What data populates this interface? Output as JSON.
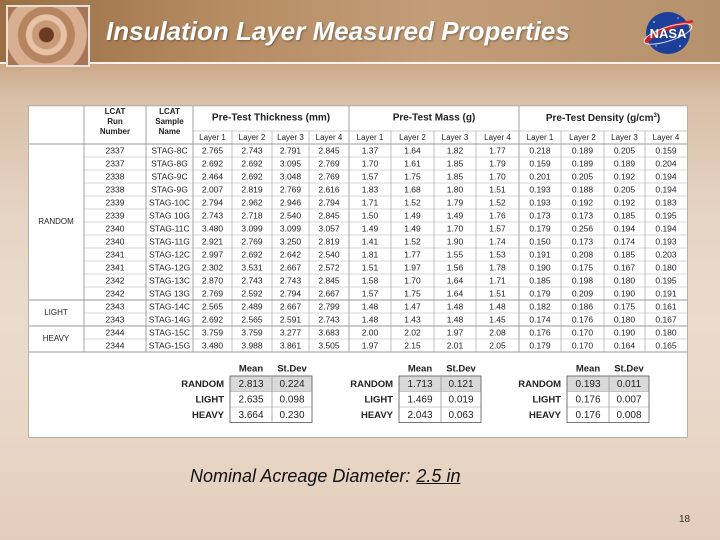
{
  "slide": {
    "title": "Insulation Layer Measured Properties",
    "logo_text": "NASA",
    "thumbnail_icon": "insulation-sample-photo",
    "footer_label": "Nominal Acreage Diameter:",
    "footer_value": "2.5 in",
    "page_number": "18"
  },
  "table": {
    "headers": {
      "run": [
        "LCAT",
        "Run",
        "Number"
      ],
      "sample": [
        "LCAT",
        "Sample",
        "Name"
      ],
      "thickness": "Pre-Test Thickness (mm)",
      "mass": "Pre-Test Mass (g)",
      "density_main": "Pre-Test Density (g/cm",
      "density_sup": "3",
      "density_close": ")",
      "layers": [
        "Layer 1",
        "Layer 2",
        "Layer 3",
        "Layer 4"
      ]
    },
    "groups": [
      {
        "label": "RANDOM",
        "start": 0,
        "count": 12
      },
      {
        "label": "LIGHT",
        "start": 12,
        "count": 2
      },
      {
        "label": "HEAVY",
        "start": 14,
        "count": 2
      }
    ],
    "rows": [
      {
        "run": "2337",
        "sample": "STAG-8C",
        "thickness": [
          "2.765",
          "2.743",
          "2.791",
          "2.845"
        ],
        "mass": [
          "1.37",
          "1.64",
          "1.82",
          "1.77"
        ],
        "density": [
          "0.218",
          "0.189",
          "0.205",
          "0.159"
        ]
      },
      {
        "run": "2337",
        "sample": "STAG-8G",
        "thickness": [
          "2.692",
          "2.692",
          "3.095",
          "2.769"
        ],
        "mass": [
          "1.70",
          "1.61",
          "1.85",
          "1.79"
        ],
        "density": [
          "0.159",
          "0.189",
          "0.189",
          "0.204"
        ]
      },
      {
        "run": "2338",
        "sample": "STAG-9C",
        "thickness": [
          "2.464",
          "2.692",
          "3.048",
          "2.769"
        ],
        "mass": [
          "1.57",
          "1.75",
          "1.85",
          "1.70"
        ],
        "density": [
          "0.201",
          "0.205",
          "0.192",
          "0.194"
        ]
      },
      {
        "run": "2338",
        "sample": "STAG-9G",
        "thickness": [
          "2.007",
          "2.819",
          "2.769",
          "2.616"
        ],
        "mass": [
          "1.83",
          "1.68",
          "1.80",
          "1.51"
        ],
        "density": [
          "0.193",
          "0.188",
          "0.205",
          "0.194"
        ]
      },
      {
        "run": "2339",
        "sample": "STAG-10C",
        "thickness": [
          "2.794",
          "2.962",
          "2.946",
          "2.794"
        ],
        "mass": [
          "1.71",
          "1.52",
          "1.79",
          "1.52"
        ],
        "density": [
          "0.193",
          "0.192",
          "0.192",
          "0.183"
        ]
      },
      {
        "run": "2339",
        "sample": "STAG 10G",
        "thickness": [
          "2.743",
          "2.718",
          "2.540",
          "2.845"
        ],
        "mass": [
          "1.50",
          "1.49",
          "1.49",
          "1.76"
        ],
        "density": [
          "0.173",
          "0.173",
          "0.185",
          "0.195"
        ]
      },
      {
        "run": "2340",
        "sample": "STAG-11C",
        "thickness": [
          "3.480",
          "3.099",
          "3.099",
          "3.057"
        ],
        "mass": [
          "1.49",
          "1.49",
          "1.70",
          "1.57"
        ],
        "density": [
          "0.179",
          "0.256",
          "0.194",
          "0.194"
        ]
      },
      {
        "run": "2340",
        "sample": "STAG-11G",
        "thickness": [
          "2.921",
          "2.769",
          "3.250",
          "2.819"
        ],
        "mass": [
          "1.41",
          "1.52",
          "1.90",
          "1.74"
        ],
        "density": [
          "0.150",
          "0.173",
          "0.174",
          "0.193"
        ]
      },
      {
        "run": "2341",
        "sample": "STAG-12C",
        "thickness": [
          "2.997",
          "2.692",
          "2.642",
          "2.540"
        ],
        "mass": [
          "1.81",
          "1.77",
          "1.55",
          "1.53"
        ],
        "density": [
          "0.191",
          "0.208",
          "0.185",
          "0.203"
        ]
      },
      {
        "run": "2341",
        "sample": "STAG-12G",
        "thickness": [
          "2.302",
          "3.531",
          "2.667",
          "2.572"
        ],
        "mass": [
          "1.51",
          "1.97",
          "1.56",
          "1.78"
        ],
        "density": [
          "0.190",
          "0.175",
          "0.167",
          "0.180"
        ]
      },
      {
        "run": "2342",
        "sample": "STAG-13C",
        "thickness": [
          "2.870",
          "2.743",
          "2.743",
          "2.845"
        ],
        "mass": [
          "1.58",
          "1.70",
          "1.64",
          "1.71"
        ],
        "density": [
          "0.185",
          "0.198",
          "0.180",
          "0.195"
        ]
      },
      {
        "run": "2342",
        "sample": "STAG 13G",
        "thickness": [
          "2.769",
          "2.592",
          "2.794",
          "2.667"
        ],
        "mass": [
          "1.57",
          "1.75",
          "1.64",
          "1.51"
        ],
        "density": [
          "0.179",
          "0.209",
          "0.190",
          "0.191"
        ]
      },
      {
        "run": "2343",
        "sample": "STAG-14C",
        "thickness": [
          "2.565",
          "2.489",
          "2.667",
          "2.799"
        ],
        "mass": [
          "1.48",
          "1.47",
          "1.48",
          "1.48"
        ],
        "density": [
          "0.182",
          "0.186",
          "0.175",
          "0.161"
        ]
      },
      {
        "run": "2343",
        "sample": "STAG-14G",
        "thickness": [
          "2.692",
          "2.565",
          "2.591",
          "2.743"
        ],
        "mass": [
          "1.48",
          "1.43",
          "1.48",
          "1.45"
        ],
        "density": [
          "0.174",
          "0.176",
          "0.180",
          "0.167"
        ]
      },
      {
        "run": "2344",
        "sample": "STAG-15C",
        "thickness": [
          "3.759",
          "3.759",
          "3.277",
          "3.683"
        ],
        "mass": [
          "2.00",
          "2.02",
          "1.97",
          "2.08"
        ],
        "density": [
          "0.176",
          "0.170",
          "0.190",
          "0.180"
        ]
      },
      {
        "run": "2344",
        "sample": "STAG-15G",
        "thickness": [
          "3.480",
          "3.988",
          "3.861",
          "3.505"
        ],
        "mass": [
          "1.97",
          "2.15",
          "2.01",
          "2.05"
        ],
        "density": [
          "0.179",
          "0.170",
          "0.164",
          "0.165"
        ]
      }
    ],
    "summary": {
      "headers": [
        "Mean",
        "St.Dev"
      ],
      "labels": [
        "RANDOM",
        "LIGHT",
        "HEAVY"
      ],
      "thickness": [
        [
          "2.813",
          "0.224"
        ],
        [
          "2.635",
          "0.098"
        ],
        [
          "3.664",
          "0.230"
        ]
      ],
      "mass": [
        [
          "1.713",
          "0.121"
        ],
        [
          "1.469",
          "0.019"
        ],
        [
          "2.043",
          "0.063"
        ]
      ],
      "density": [
        [
          "0.193",
          "0.011"
        ],
        [
          "0.176",
          "0.007"
        ],
        [
          "0.176",
          "0.008"
        ]
      ]
    }
  },
  "colors": {
    "title_text": "#ffffff",
    "grid": "#9a9a9a",
    "highlight": "#d9d9d9",
    "nasa_blue": "#1d3f9a",
    "nasa_red": "#d21f26"
  }
}
